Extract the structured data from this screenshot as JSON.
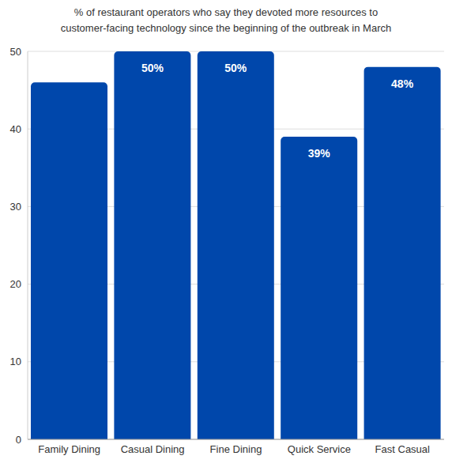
{
  "chart_data": {
    "type": "bar",
    "title": "% of restaurant operators who say they devoted more resources to customer-facing technology since the beginning of the outbreak in March",
    "categories": [
      "Family Dining",
      "Casual Dining",
      "Fine Dining",
      "Quick Service",
      "Fast Casual"
    ],
    "values": [
      46,
      50,
      50,
      39,
      48
    ],
    "value_labels": [
      null,
      "50%",
      "50%",
      "39%",
      "48%"
    ],
    "data_labels": true,
    "color": "#0047ab",
    "ylim": [
      0,
      50
    ],
    "yticks": [
      0,
      10,
      20,
      30,
      40,
      50
    ],
    "grid": true
  }
}
